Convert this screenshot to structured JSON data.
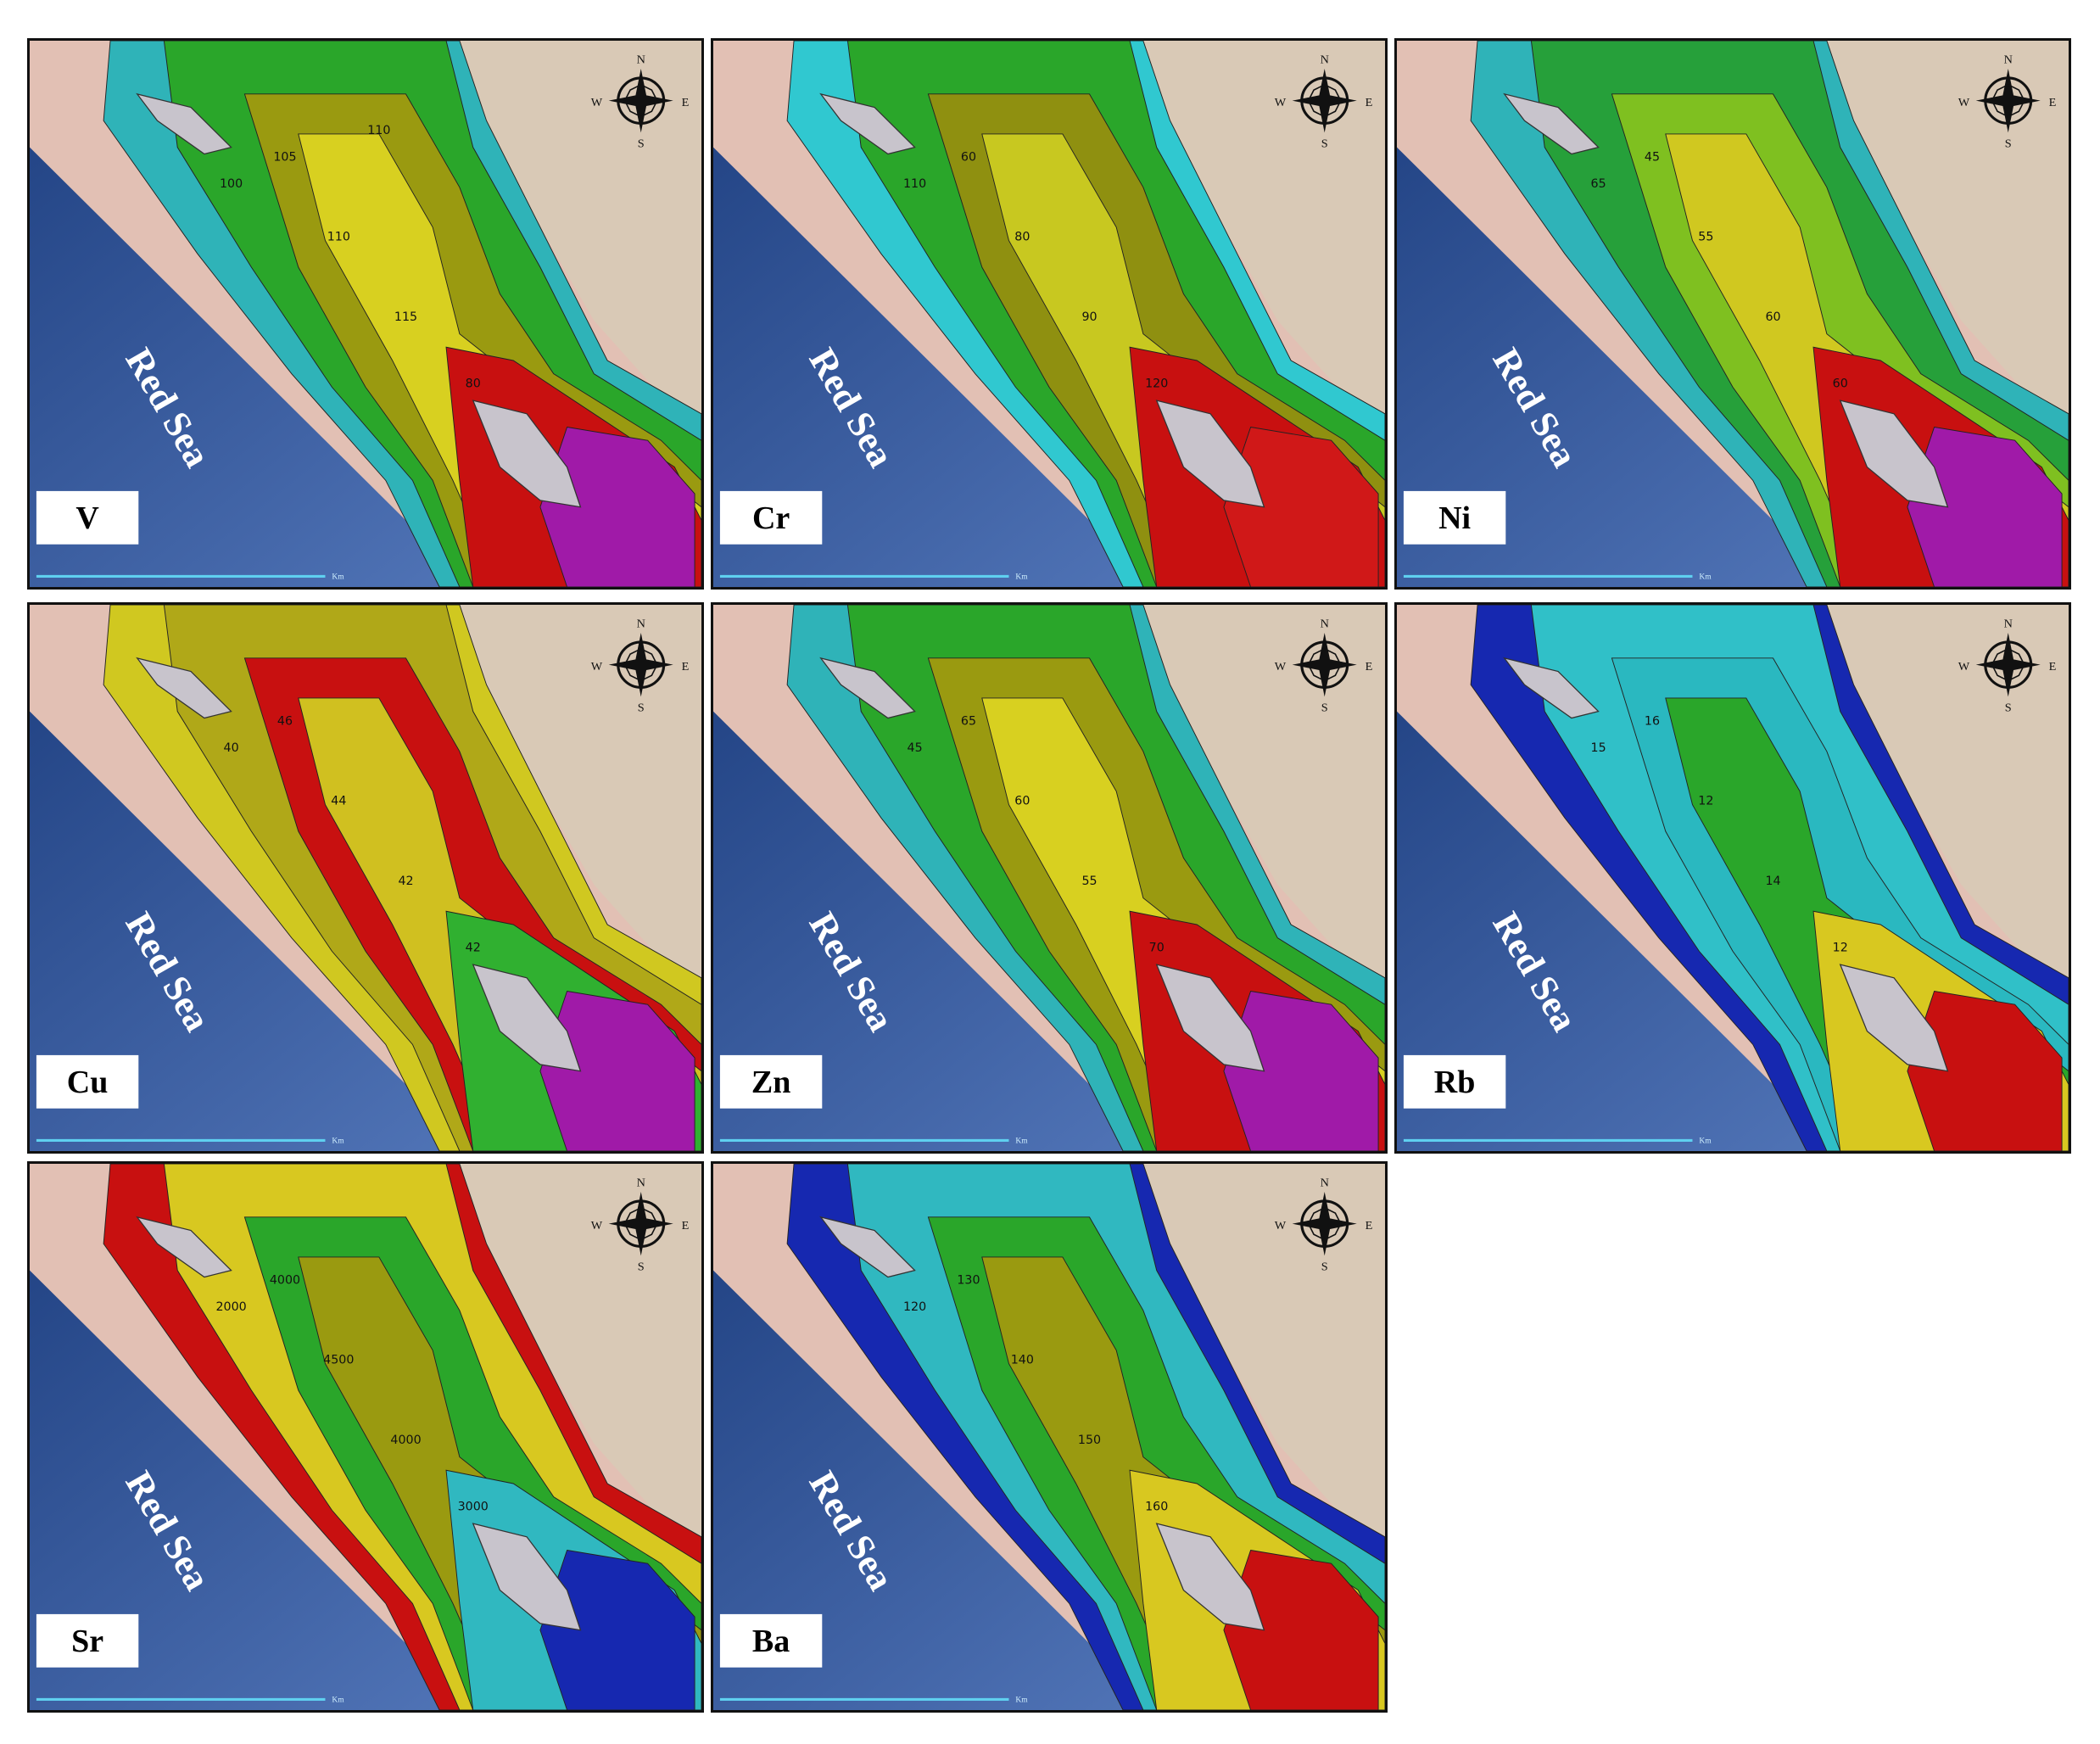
{
  "panels": [
    {
      "element": "V",
      "sea_label": "Red Sea",
      "compass": {
        "n": "N",
        "s": "S",
        "w": "W",
        "e": "E"
      },
      "scale_unit": "Km",
      "contour_labels": [
        "105",
        "110",
        "115",
        "100",
        "80",
        "110"
      ]
    },
    {
      "element": "Cr",
      "sea_label": "Red Sea",
      "compass": {
        "n": "N",
        "s": "S",
        "w": "W",
        "e": "E"
      },
      "scale_unit": "Km",
      "contour_labels": [
        "60",
        "80",
        "90",
        "110",
        "120"
      ]
    },
    {
      "element": "Ni",
      "sea_label": "Red Sea",
      "compass": {
        "n": "N",
        "s": "S",
        "w": "W",
        "e": "E"
      },
      "scale_unit": "Km",
      "contour_labels": [
        "45",
        "55",
        "60",
        "65",
        "60"
      ]
    },
    {
      "element": "Cu",
      "sea_label": "Red Sea",
      "compass": {
        "n": "N",
        "s": "S",
        "w": "W",
        "e": "E"
      },
      "scale_unit": "Km",
      "contour_labels": [
        "46",
        "44",
        "42",
        "40",
        "42"
      ]
    },
    {
      "element": "Zn",
      "sea_label": "Red Sea",
      "compass": {
        "n": "N",
        "s": "S",
        "w": "W",
        "e": "E"
      },
      "scale_unit": "Km",
      "contour_labels": [
        "65",
        "60",
        "55",
        "45",
        "70"
      ]
    },
    {
      "element": "Rb",
      "sea_label": "Red Sea",
      "compass": {
        "n": "N",
        "s": "S",
        "w": "W",
        "e": "E"
      },
      "scale_unit": "Km",
      "contour_labels": [
        "16",
        "12",
        "14",
        "15",
        "12"
      ]
    },
    {
      "element": "Sr",
      "sea_label": "Red Sea",
      "compass": {
        "n": "N",
        "s": "S",
        "w": "W",
        "e": "E"
      },
      "scale_unit": "Km",
      "contour_labels": [
        "4000",
        "4500",
        "4000",
        "2000",
        "3000"
      ]
    },
    {
      "element": "Ba",
      "sea_label": "Red Sea",
      "compass": {
        "n": "N",
        "s": "S",
        "w": "W",
        "e": "E"
      },
      "scale_unit": "Km",
      "contour_labels": [
        "130",
        "140",
        "150",
        "120",
        "160"
      ]
    }
  ]
}
